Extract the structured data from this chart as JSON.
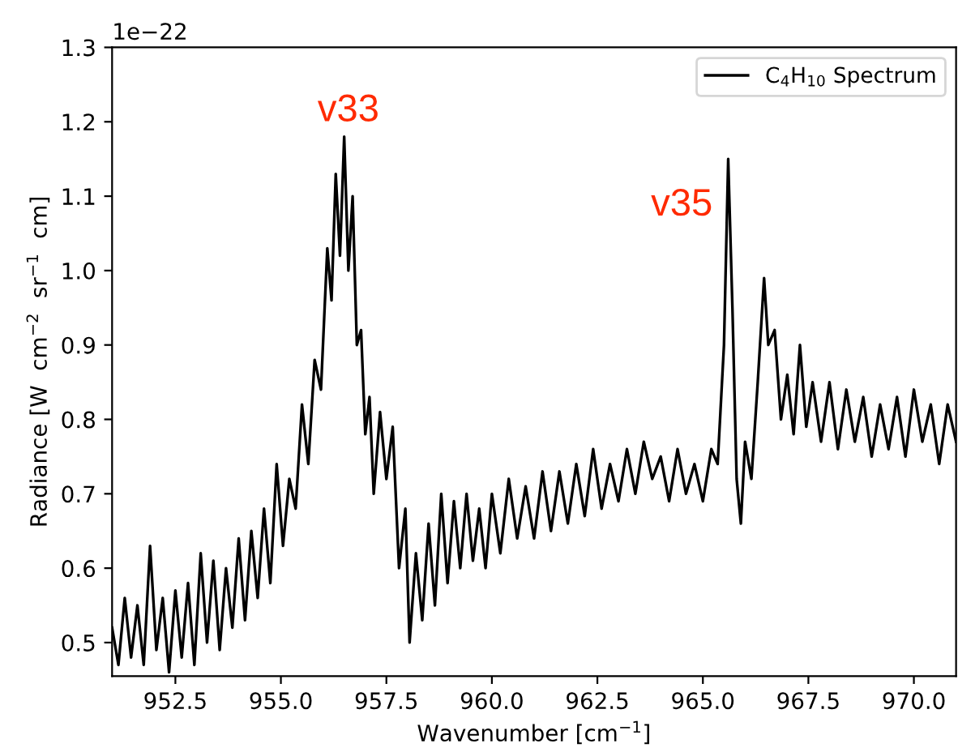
{
  "chart_data": {
    "type": "line",
    "xlabel": "Wavenumber [cm$^{−1}$]",
    "ylabel": "Radiance [W  cm$^{−2}$  sr$^{−1}$  cm]",
    "x": [
      951.0,
      951.15,
      951.3,
      951.45,
      951.6,
      951.75,
      951.9,
      952.05,
      952.2,
      952.35,
      952.5,
      952.65,
      952.8,
      952.95,
      953.1,
      953.25,
      953.4,
      953.55,
      953.7,
      953.85,
      954.0,
      954.15,
      954.3,
      954.45,
      954.6,
      954.75,
      954.9,
      955.05,
      955.2,
      955.35,
      955.5,
      955.65,
      955.8,
      955.95,
      956.1,
      956.2,
      956.3,
      956.4,
      956.5,
      956.6,
      956.7,
      956.8,
      956.9,
      957.0,
      957.1,
      957.2,
      957.35,
      957.5,
      957.65,
      957.8,
      957.95,
      958.05,
      958.2,
      958.35,
      958.5,
      958.65,
      958.8,
      958.95,
      959.1,
      959.25,
      959.4,
      959.55,
      959.7,
      959.85,
      960.0,
      960.2,
      960.4,
      960.6,
      960.8,
      961.0,
      961.2,
      961.4,
      961.6,
      961.8,
      962.0,
      962.2,
      962.4,
      962.6,
      962.8,
      963.0,
      963.2,
      963.4,
      963.6,
      963.8,
      964.0,
      964.2,
      964.4,
      964.6,
      964.8,
      965.0,
      965.2,
      965.35,
      965.5,
      965.6,
      965.7,
      965.8,
      965.9,
      966.0,
      966.15,
      966.3,
      966.45,
      966.55,
      966.7,
      966.85,
      967.0,
      967.15,
      967.3,
      967.45,
      967.6,
      967.8,
      968.0,
      968.2,
      968.4,
      968.6,
      968.8,
      969.0,
      969.2,
      969.4,
      969.6,
      969.8,
      970.0,
      970.2,
      970.4,
      970.6,
      970.8,
      971.0
    ],
    "series": [
      {
        "name": "C$_{4}$H$_{10}$ Spectrum",
        "color": "#000000",
        "values": [
          0.52,
          0.47,
          0.56,
          0.48,
          0.55,
          0.47,
          0.63,
          0.49,
          0.56,
          0.46,
          0.57,
          0.48,
          0.58,
          0.47,
          0.62,
          0.5,
          0.61,
          0.49,
          0.6,
          0.52,
          0.64,
          0.53,
          0.65,
          0.56,
          0.68,
          0.58,
          0.74,
          0.63,
          0.72,
          0.68,
          0.82,
          0.74,
          0.88,
          0.84,
          1.03,
          0.96,
          1.13,
          1.02,
          1.18,
          1.0,
          1.1,
          0.9,
          0.92,
          0.78,
          0.83,
          0.7,
          0.81,
          0.72,
          0.79,
          0.6,
          0.68,
          0.5,
          0.62,
          0.53,
          0.66,
          0.55,
          0.7,
          0.58,
          0.69,
          0.6,
          0.7,
          0.61,
          0.68,
          0.6,
          0.7,
          0.62,
          0.72,
          0.64,
          0.71,
          0.64,
          0.73,
          0.65,
          0.73,
          0.66,
          0.74,
          0.67,
          0.76,
          0.68,
          0.74,
          0.69,
          0.76,
          0.7,
          0.77,
          0.72,
          0.75,
          0.69,
          0.76,
          0.7,
          0.74,
          0.69,
          0.76,
          0.74,
          0.9,
          1.15,
          0.95,
          0.72,
          0.66,
          0.77,
          0.72,
          0.85,
          0.99,
          0.9,
          0.92,
          0.8,
          0.86,
          0.78,
          0.9,
          0.79,
          0.85,
          0.77,
          0.85,
          0.76,
          0.84,
          0.77,
          0.83,
          0.75,
          0.82,
          0.76,
          0.83,
          0.75,
          0.84,
          0.77,
          0.82,
          0.74,
          0.82,
          0.77
        ]
      }
    ],
    "xlim": [
      951.0,
      971.0
    ],
    "ylim": [
      0.455,
      1.3
    ],
    "xticks": [
      {
        "value": 952.5,
        "label": "952.5"
      },
      {
        "value": 955,
        "label": "955.0"
      },
      {
        "value": 957.5,
        "label": "957.5"
      },
      {
        "value": 960,
        "label": "960.0"
      },
      {
        "value": 962.5,
        "label": "962.5"
      },
      {
        "value": 965,
        "label": "965.0"
      },
      {
        "value": 967.5,
        "label": "967.5"
      },
      {
        "value": 970,
        "label": "970.0"
      }
    ],
    "yticks": [
      0.5,
      0.6,
      0.7,
      0.8,
      0.9,
      {
        "value": 1.0,
        "label": "1.0"
      },
      1.1,
      1.2,
      1.3
    ],
    "annotations": [
      "1e−22",
      "v33",
      "v35"
    ],
    "legend": "top right",
    "grid": false,
    "line_style": "solid",
    "marker": "none"
  }
}
